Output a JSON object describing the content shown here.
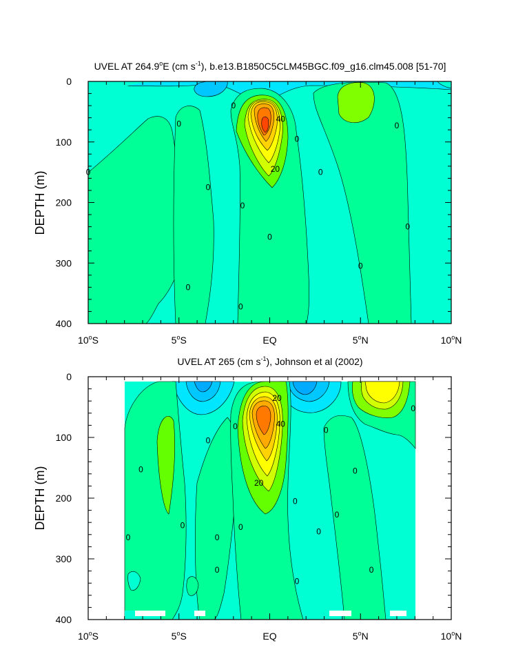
{
  "chart_data": [
    {
      "type": "heatmap",
      "title_prefix": "UVEL AT 264.9",
      "title_deg": "o",
      "title_mid": "E (cm s",
      "title_sup": "-1",
      "title_suffix": "), b.e13.B1850C5CLM45BGC.f09_g16.clm45.008 [51-70]",
      "ylabel": "DEPTH (m)",
      "xlim": [
        -10,
        10
      ],
      "ylim": [
        0,
        400
      ],
      "yticks": [
        "0",
        "100",
        "200",
        "300",
        "400"
      ],
      "xticks": [
        {
          "num": "10",
          "deg": "o",
          "hemi": "S"
        },
        {
          "num": "5",
          "deg": "o",
          "hemi": "S"
        },
        {
          "num": "EQ",
          "deg": "",
          "hemi": ""
        },
        {
          "num": "5",
          "deg": "o",
          "hemi": "N"
        },
        {
          "num": "10",
          "deg": "o",
          "hemi": "N"
        }
      ],
      "contour_interval": 10,
      "core": {
        "lat": 0,
        "depth": 75,
        "max_cm_s": 70
      },
      "contour_labels": [
        {
          "text": "0",
          "lat": -10,
          "depth": 150
        },
        {
          "text": "0",
          "lat": -5,
          "depth": 70
        },
        {
          "text": "0",
          "lat": -4.5,
          "depth": 340
        },
        {
          "text": "0",
          "lat": -3.4,
          "depth": 175
        },
        {
          "text": "0",
          "lat": -2,
          "depth": 40
        },
        {
          "text": "0",
          "lat": -1.5,
          "depth": 205
        },
        {
          "text": "0",
          "lat": -1.6,
          "depth": 372
        },
        {
          "text": "0",
          "lat": 0,
          "depth": 257
        },
        {
          "text": "0",
          "lat": 1.5,
          "depth": 95
        },
        {
          "text": "0",
          "lat": 2.8,
          "depth": 150
        },
        {
          "text": "0",
          "lat": 5,
          "depth": 305
        },
        {
          "text": "0",
          "lat": 7,
          "depth": 73
        },
        {
          "text": "0",
          "lat": 7.6,
          "depth": 240
        },
        {
          "text": "40",
          "lat": 0.6,
          "depth": 62
        },
        {
          "text": "20",
          "lat": 0.3,
          "depth": 145
        }
      ]
    },
    {
      "type": "heatmap",
      "title_prefix": "UVEL AT 265 (cm s",
      "title_sup": "-1",
      "title_suffix": "), Johnson et al (2002)",
      "ylabel": "DEPTH (m)",
      "xlim": [
        -10,
        10
      ],
      "ylim": [
        0,
        400
      ],
      "data_lat_range": [
        -8,
        8
      ],
      "data_depth_range": [
        10,
        400
      ],
      "yticks": [
        "0",
        "100",
        "200",
        "300",
        "400"
      ],
      "xticks": [
        {
          "num": "10",
          "deg": "o",
          "hemi": "S"
        },
        {
          "num": "5",
          "deg": "o",
          "hemi": "S"
        },
        {
          "num": "EQ",
          "deg": "",
          "hemi": ""
        },
        {
          "num": "5",
          "deg": "o",
          "hemi": "N"
        },
        {
          "num": "10",
          "deg": "o",
          "hemi": "N"
        }
      ],
      "contour_interval": 10,
      "core": {
        "lat": -0.2,
        "depth": 70,
        "max_cm_s": 60
      },
      "contour_labels": [
        {
          "text": "0",
          "lat": -7.8,
          "depth": 265
        },
        {
          "text": "0",
          "lat": -7.1,
          "depth": 153
        },
        {
          "text": "0",
          "lat": -4.8,
          "depth": 245
        },
        {
          "text": "0",
          "lat": -3.4,
          "depth": 105
        },
        {
          "text": "0",
          "lat": -2.9,
          "depth": 265
        },
        {
          "text": "0",
          "lat": -2.9,
          "depth": 318
        },
        {
          "text": "0",
          "lat": -1.9,
          "depth": 82
        },
        {
          "text": "0",
          "lat": -1.6,
          "depth": 248
        },
        {
          "text": "0",
          "lat": 1.4,
          "depth": 205
        },
        {
          "text": "0",
          "lat": 1.5,
          "depth": 337
        },
        {
          "text": "0",
          "lat": 3.1,
          "depth": 88
        },
        {
          "text": "0",
          "lat": 2.7,
          "depth": 255
        },
        {
          "text": "0",
          "lat": 3.7,
          "depth": 227
        },
        {
          "text": "0",
          "lat": 4.7,
          "depth": 155
        },
        {
          "text": "0",
          "lat": 5.6,
          "depth": 318
        },
        {
          "text": "0",
          "lat": 7.9,
          "depth": 52
        },
        {
          "text": "20",
          "lat": 0.4,
          "depth": 35
        },
        {
          "text": "40",
          "lat": 0.6,
          "depth": 78
        },
        {
          "text": "20",
          "lat": -0.6,
          "depth": 175
        }
      ]
    }
  ]
}
